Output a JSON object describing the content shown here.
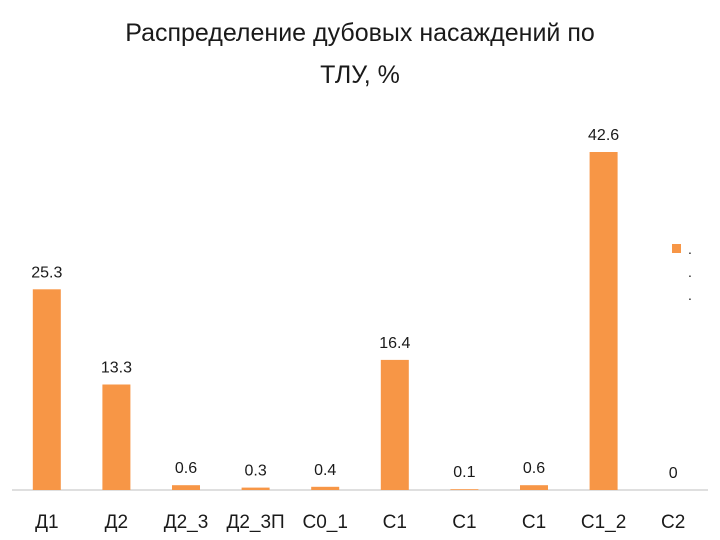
{
  "chart_data": {
    "type": "bar",
    "title": "Распределение дубовых насаждений по ТЛУ, %",
    "categories": [
      "Д1",
      "Д2",
      "Д2_3",
      "Д2_3П",
      "С0_1",
      "С1",
      "С1",
      "С1",
      "С1_2",
      "С2"
    ],
    "values": [
      25.3,
      13.3,
      0.6,
      0.3,
      0.4,
      16.4,
      0.1,
      0.6,
      42.6,
      0
    ],
    "data_labels": [
      "25.3",
      "13.3",
      "0.6",
      "0.3",
      "0.4",
      "16.4",
      "0.1",
      "0.6",
      "42.6",
      "0"
    ],
    "ylim": [
      0,
      42.6
    ],
    "grid": false,
    "legend": {
      "placement": "right",
      "entries": [
        "."
      ]
    },
    "colors": {
      "bar": "#F79646"
    }
  }
}
